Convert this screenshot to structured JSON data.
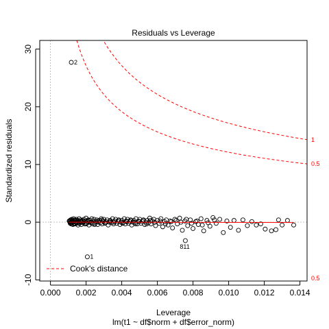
{
  "chart_data": {
    "type": "scatter",
    "title": "Residuals vs Leverage",
    "xlabel": "Leverage",
    "ylabel": "Standardized residuals",
    "subtitle": "lm(t1 ~ df$norm + df$error_norm)",
    "xlim": [
      -0.0006,
      0.0144
    ],
    "ylim": [
      -10.2,
      31.5
    ],
    "x_ticks": [
      "0.000",
      "0.002",
      "0.004",
      "0.006",
      "0.008",
      "0.010",
      "0.012",
      "0.014"
    ],
    "x_tick_values": [
      0.0,
      0.002,
      0.004,
      0.006,
      0.008,
      0.01,
      0.012,
      0.014
    ],
    "y_ticks": [
      "-10",
      "0",
      "10",
      "20",
      "30"
    ],
    "y_tick_values": [
      -10,
      0,
      10,
      20,
      30
    ],
    "reference_lines": {
      "horizontal_zero": 0,
      "vertical_zero": 0
    },
    "smoother_color": "#ff0000",
    "cooks_color": "#ff0000",
    "cooks_levels": [
      {
        "level": "1",
        "label": "1",
        "right_y": 14.3
      },
      {
        "level": "0.5",
        "label": "0.5",
        "right_y": 10.1
      }
    ],
    "cooks_lower_labels": [
      {
        "label": "0.5"
      }
    ],
    "labeled_points": [
      {
        "label": "2",
        "x": 0.00117,
        "y": 27.7
      },
      {
        "label": "1",
        "x": 0.00207,
        "y": -6.0
      },
      {
        "label": "811",
        "x": 0.00757,
        "y": -3.2
      }
    ],
    "points": [
      [
        0.00108,
        0.1
      ],
      [
        0.0011,
        0.3
      ],
      [
        0.00111,
        -0.2
      ],
      [
        0.00113,
        0.4
      ],
      [
        0.00114,
        0.0
      ],
      [
        0.00116,
        -0.3
      ],
      [
        0.00118,
        0.2
      ],
      [
        0.0012,
        0.5
      ],
      [
        0.00122,
        -0.1
      ],
      [
        0.00124,
        0.3
      ],
      [
        0.00126,
        -0.4
      ],
      [
        0.00128,
        0.1
      ],
      [
        0.0013,
        0.6
      ],
      [
        0.00132,
        -0.2
      ],
      [
        0.00134,
        0.2
      ],
      [
        0.00137,
        0.4
      ],
      [
        0.0014,
        -0.3
      ],
      [
        0.00143,
        0.0
      ],
      [
        0.00146,
        0.5
      ],
      [
        0.00149,
        -0.1
      ],
      [
        0.00152,
        0.3
      ],
      [
        0.00155,
        -0.5
      ],
      [
        0.00158,
        0.2
      ],
      [
        0.00161,
        0.6
      ],
      [
        0.00164,
        -0.2
      ],
      [
        0.00167,
        0.1
      ],
      [
        0.0017,
        0.4
      ],
      [
        0.00173,
        -0.4
      ],
      [
        0.00176,
        0.0
      ],
      [
        0.0018,
        0.3
      ],
      [
        0.00184,
        -0.1
      ],
      [
        0.00188,
        0.5
      ],
      [
        0.00192,
        -0.3
      ],
      [
        0.00196,
        0.2
      ],
      [
        0.002,
        0.7
      ],
      [
        0.00204,
        -0.2
      ],
      [
        0.00208,
        0.1
      ],
      [
        0.00212,
        0.4
      ],
      [
        0.00216,
        -0.5
      ],
      [
        0.0022,
        0.0
      ],
      [
        0.00224,
        0.3
      ],
      [
        0.00228,
        -0.1
      ],
      [
        0.00232,
        0.6
      ],
      [
        0.00236,
        -0.3
      ],
      [
        0.0024,
        0.2
      ],
      [
        0.00245,
        0.5
      ],
      [
        0.0025,
        -0.2
      ],
      [
        0.00255,
        0.1
      ],
      [
        0.0026,
        0.4
      ],
      [
        0.00265,
        -0.4
      ],
      [
        0.0027,
        0.0
      ],
      [
        0.00275,
        0.3
      ],
      [
        0.0028,
        -0.1
      ],
      [
        0.00285,
        0.6
      ],
      [
        0.0029,
        -0.3
      ],
      [
        0.00295,
        0.2
      ],
      [
        0.003,
        0.5
      ],
      [
        0.00306,
        -0.2
      ],
      [
        0.00312,
        0.1
      ],
      [
        0.00318,
        0.4
      ],
      [
        0.00324,
        -0.5
      ],
      [
        0.0033,
        0.0
      ],
      [
        0.00336,
        0.3
      ],
      [
        0.00342,
        -0.1
      ],
      [
        0.00348,
        0.6
      ],
      [
        0.00354,
        -0.3
      ],
      [
        0.0036,
        0.2
      ],
      [
        0.00366,
        0.5
      ],
      [
        0.00372,
        -0.2
      ],
      [
        0.00378,
        0.1
      ],
      [
        0.00384,
        0.4
      ],
      [
        0.0039,
        -0.4
      ],
      [
        0.00396,
        0.0
      ],
      [
        0.00402,
        0.3
      ],
      [
        0.00408,
        -0.1
      ],
      [
        0.00414,
        0.6
      ],
      [
        0.0042,
        -0.3
      ],
      [
        0.00426,
        0.2
      ],
      [
        0.00432,
        0.5
      ],
      [
        0.00438,
        -0.2
      ],
      [
        0.00444,
        0.1
      ],
      [
        0.0045,
        0.4
      ],
      [
        0.00456,
        -0.5
      ],
      [
        0.00462,
        0.0
      ],
      [
        0.00468,
        0.3
      ],
      [
        0.00474,
        -0.1
      ],
      [
        0.0048,
        0.6
      ],
      [
        0.00487,
        -0.3
      ],
      [
        0.00494,
        0.2
      ],
      [
        0.00501,
        0.5
      ],
      [
        0.00508,
        -0.2
      ],
      [
        0.00515,
        0.1
      ],
      [
        0.00522,
        0.4
      ],
      [
        0.00529,
        -0.4
      ],
      [
        0.00536,
        0.0
      ],
      [
        0.00543,
        0.3
      ],
      [
        0.0055,
        -0.1
      ],
      [
        0.00557,
        0.7
      ],
      [
        0.00564,
        -0.3
      ],
      [
        0.00572,
        0.2
      ],
      [
        0.0058,
        0.5
      ],
      [
        0.0059,
        -0.6
      ],
      [
        0.006,
        0.3
      ],
      [
        0.0061,
        -0.2
      ],
      [
        0.0062,
        0.6
      ],
      [
        0.0063,
        -0.8
      ],
      [
        0.0064,
        0.1
      ],
      [
        0.0065,
        0.4
      ],
      [
        0.0066,
        -0.5
      ],
      [
        0.00672,
        0.2
      ],
      [
        0.00685,
        -1.0
      ],
      [
        0.00698,
        0.5
      ],
      [
        0.00712,
        -0.3
      ],
      [
        0.00725,
        0.7
      ],
      [
        0.0074,
        -1.4
      ],
      [
        0.00755,
        0.2
      ],
      [
        0.0077,
        -0.6
      ],
      [
        0.00785,
        0.4
      ],
      [
        0.008,
        -1.1
      ],
      [
        0.00815,
        0.1
      ],
      [
        0.0083,
        -0.4
      ],
      [
        0.00845,
        0.6
      ],
      [
        0.0086,
        -1.5
      ],
      [
        0.00878,
        0.3
      ],
      [
        0.00895,
        -0.7
      ],
      [
        0.00912,
        0.8
      ],
      [
        0.0093,
        -0.2
      ],
      [
        0.0095,
        0.5
      ],
      [
        0.0097,
        -1.8
      ],
      [
        0.0099,
        0.2
      ],
      [
        0.0101,
        -0.9
      ],
      [
        0.0103,
        0.3
      ],
      [
        0.01055,
        -1.4
      ],
      [
        0.0108,
        0.4
      ],
      [
        0.01105,
        -0.6
      ],
      [
        0.0113,
        0.1
      ],
      [
        0.01155,
        -0.5
      ],
      [
        0.0118,
        -0.3
      ],
      [
        0.01205,
        -1.2
      ],
      [
        0.0124,
        -1.5
      ],
      [
        0.01265,
        -1.3
      ],
      [
        0.0128,
        0.4
      ],
      [
        0.013,
        -0.5
      ],
      [
        0.0133,
        0.3
      ],
      [
        0.01365,
        -0.5
      ],
      [
        0.00105,
        0.2
      ],
      [
        0.00112,
        -0.1
      ],
      [
        0.00119,
        0.0
      ],
      [
        0.00125,
        0.2
      ],
      [
        0.00133,
        -0.3
      ],
      [
        0.00141,
        0.3
      ],
      [
        0.0015,
        0.1
      ],
      [
        0.0016,
        -0.2
      ],
      [
        0.00172,
        0.2
      ],
      [
        0.00186,
        0.1
      ],
      [
        0.00199,
        -0.3
      ],
      [
        0.00214,
        0.3
      ],
      [
        0.00231,
        0.0
      ],
      [
        0.00248,
        -0.4
      ],
      [
        0.00268,
        0.2
      ],
      [
        0.00289,
        0.4
      ],
      [
        0.00309,
        -0.1
      ],
      [
        0.00333,
        0.2
      ],
      [
        0.00357,
        0.0
      ],
      [
        0.00381,
        0.3
      ],
      [
        0.00405,
        -0.2
      ],
      [
        0.00429,
        0.1
      ],
      [
        0.00453,
        0.3
      ],
      [
        0.00477,
        -0.3
      ],
      [
        0.00498,
        0.1
      ],
      [
        0.00519,
        0.3
      ],
      [
        0.0054,
        -0.3
      ],
      [
        0.00561,
        0.3
      ],
      [
        0.00585,
        0.0
      ],
      [
        0.00615,
        0.2
      ],
      [
        0.00645,
        -0.3
      ],
      [
        0.00678,
        0.1
      ],
      [
        0.00705,
        0.3
      ],
      [
        0.00732,
        0.0
      ],
      [
        0.00762,
        0.5
      ],
      [
        0.00792,
        -0.2
      ],
      [
        0.00822,
        0.2
      ],
      [
        0.00852,
        -0.5
      ],
      [
        0.00885,
        -0.1
      ],
      [
        0.0092,
        0.4
      ]
    ],
    "legend": {
      "position": "bottom-left",
      "entries": [
        "Cook's distance"
      ]
    }
  }
}
